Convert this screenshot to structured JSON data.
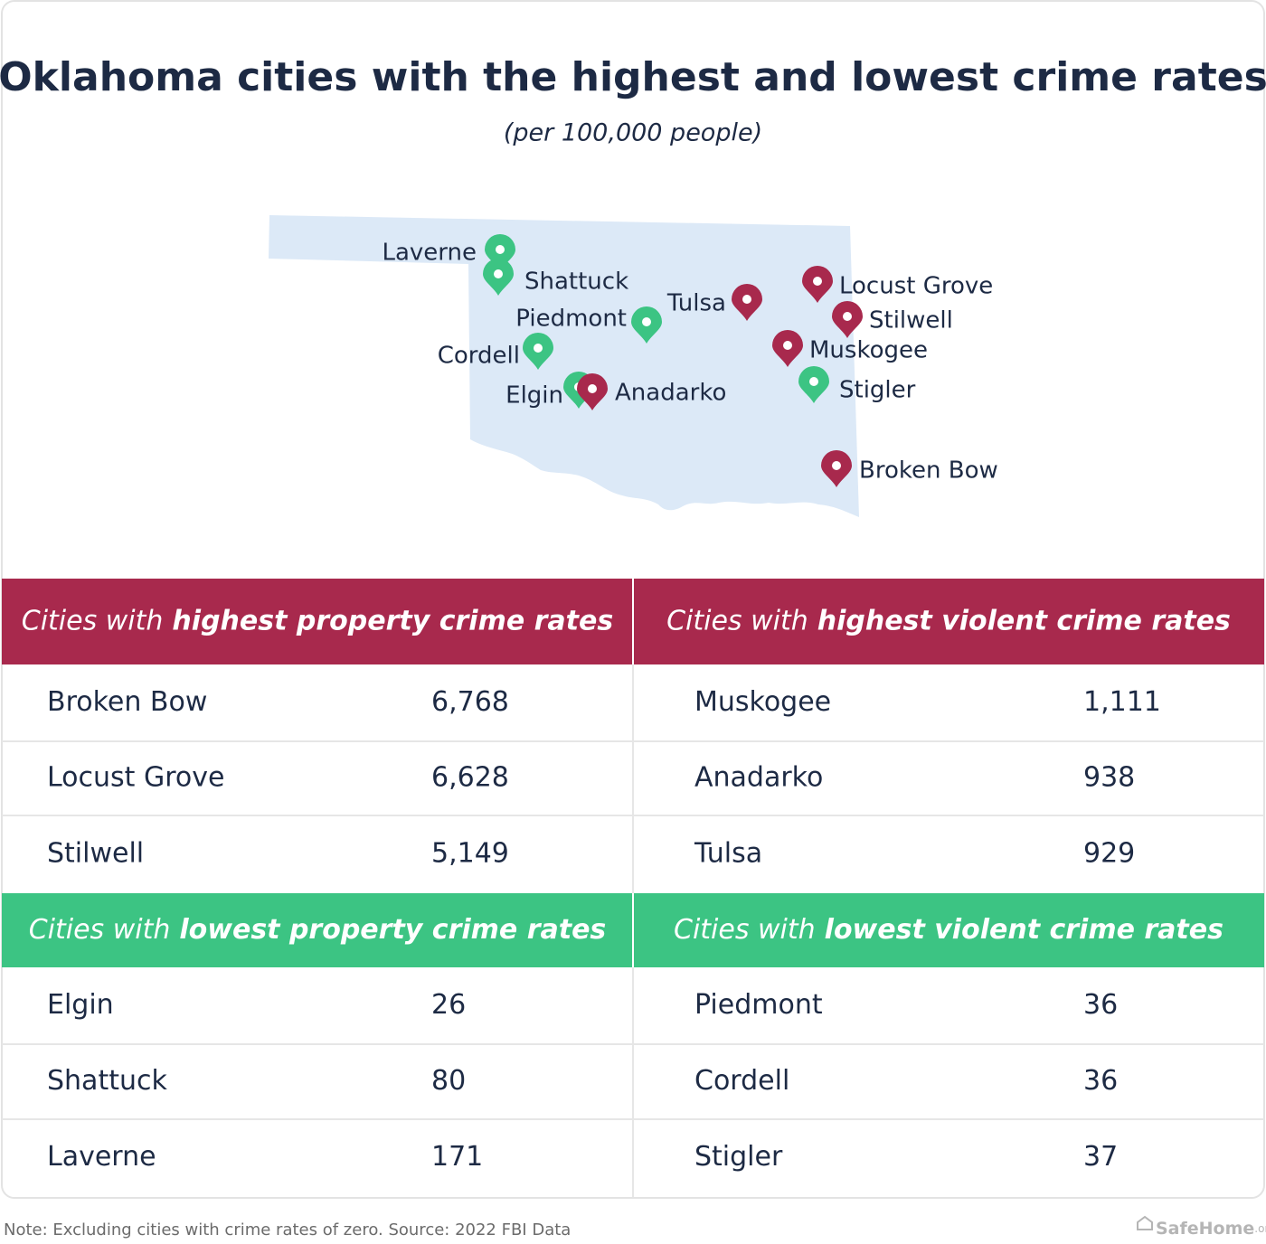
{
  "title": "Oklahoma cities with the highest and lowest crime rates",
  "subtitle": "(per 100,000 people)",
  "map": {
    "pins": [
      "Laverne",
      "Shattuck",
      "Piedmont",
      "Tulsa",
      "Cordell",
      "Elgin",
      "Anadarko",
      "Locust Grove",
      "Stilwell",
      "Muskogee",
      "Stigler",
      "Broken Bow"
    ]
  },
  "tables": [
    {
      "header": {
        "prefix": "Cities with",
        "emphasis": "highest property crime rates"
      },
      "rows": [
        [
          "Broken Bow",
          "6,768"
        ],
        [
          "Locust Grove",
          "6,628"
        ],
        [
          "Stilwell",
          "5,149"
        ]
      ]
    },
    {
      "header": {
        "prefix": "Cities with",
        "emphasis": "highest violent crime rates"
      },
      "rows": [
        [
          "Muskogee",
          "1,111"
        ],
        [
          "Anadarko",
          "938"
        ],
        [
          "Tulsa",
          "929"
        ]
      ]
    },
    {
      "header": {
        "prefix": "Cities with",
        "emphasis": "lowest property crime rates"
      },
      "rows": [
        [
          "Elgin",
          "26"
        ],
        [
          "Shattuck",
          "80"
        ],
        [
          "Laverne",
          "171"
        ]
      ]
    },
    {
      "header": {
        "prefix": "Cities with",
        "emphasis": "lowest violent crime rates"
      },
      "rows": [
        [
          "Piedmont",
          "36"
        ],
        [
          "Cordell",
          "36"
        ],
        [
          "Stigler",
          "37"
        ]
      ]
    }
  ],
  "footer": {
    "note": "Note: Excluding cities with crime rates of zero. Source: 2022 FBI Data",
    "logo": "SafeHome",
    "logo_suffix": ".org"
  }
}
